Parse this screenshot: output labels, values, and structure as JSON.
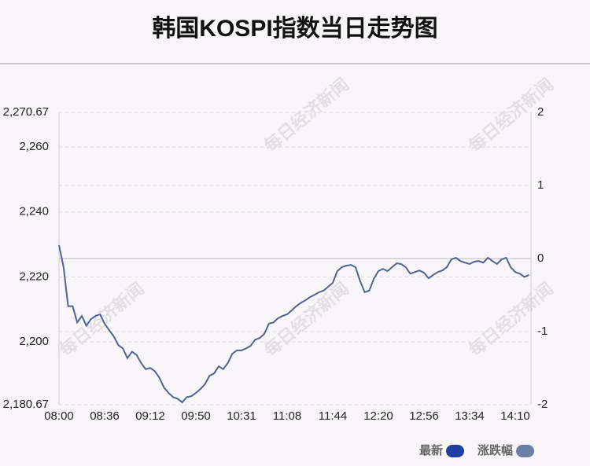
{
  "chart_data": {
    "type": "line",
    "title": "韩国KOSPI指数当日走势图",
    "watermark": "每日经济新闻",
    "categories": [
      "08:00",
      null,
      null,
      null,
      null,
      null,
      null,
      null,
      null,
      null,
      "08:36",
      null,
      null,
      null,
      null,
      null,
      null,
      null,
      null,
      null,
      "09:12",
      null,
      null,
      null,
      null,
      null,
      null,
      null,
      null,
      null,
      "09:50",
      null,
      null,
      null,
      null,
      null,
      null,
      null,
      null,
      null,
      "10:31",
      null,
      null,
      null,
      null,
      null,
      null,
      null,
      null,
      null,
      "11:08",
      null,
      null,
      null,
      null,
      null,
      null,
      null,
      null,
      null,
      "11:44",
      null,
      null,
      null,
      null,
      null,
      null,
      null,
      null,
      null,
      "12:20",
      null,
      null,
      null,
      null,
      null,
      null,
      null,
      null,
      null,
      "12:56",
      null,
      null,
      null,
      null,
      null,
      null,
      null,
      null,
      null,
      "13:34",
      null,
      null,
      null,
      null,
      null,
      null,
      null,
      null,
      null,
      "14:10",
      null,
      null,
      null
    ],
    "series": [
      {
        "name": "最新",
        "color": "#4f6494",
        "values": [
          2229.8,
          2223,
          2211,
          2211,
          2206,
          2208,
          2205,
          2207,
          2208,
          2208.5,
          2205.6,
          2203.6,
          2201.7,
          2199,
          2198,
          2195,
          2197,
          2196,
          2193.5,
          2191.6,
          2192,
          2191,
          2189,
          2186,
          2184.3,
          2183,
          2182.5,
          2181.4,
          2183,
          2183.3,
          2184.3,
          2185.5,
          2187,
          2189.6,
          2190.3,
          2192.5,
          2191.6,
          2193.5,
          2196.4,
          2197.4,
          2197.4,
          2198,
          2198.8,
          2200.7,
          2201.2,
          2202.5,
          2205.6,
          2206,
          2207.3,
          2208,
          2208.5,
          2209.7,
          2211,
          2212,
          2212.8,
          2213.8,
          2214.5,
          2215.3,
          2215.8,
          2217,
          2218.2,
          2221.8,
          2223,
          2223.5,
          2223.7,
          2223,
          2218.7,
          2215.3,
          2215.8,
          2219.4,
          2221.8,
          2222.5,
          2221.8,
          2223,
          2224.2,
          2224,
          2223,
          2221,
          2221.5,
          2222,
          2221.3,
          2219.6,
          2220.6,
          2221.5,
          2222,
          2223,
          2225.4,
          2225.9,
          2224.9,
          2224.4,
          2224,
          2224.7,
          2224.9,
          2224.4,
          2225.9,
          2224.9,
          2224,
          2225.4,
          2225.9,
          2223,
          2221.5,
          2221,
          2220,
          2220.6
        ]
      }
    ],
    "legend": [
      {
        "name": "最新",
        "color": "#1f3fa0"
      },
      {
        "name": "涨跌幅",
        "color": "#6a7fa8"
      }
    ],
    "ylim": [
      2180.67,
      2270.67
    ],
    "yticks": [
      {
        "value": 2180.67,
        "label": "2,180.67"
      },
      {
        "value": 2200,
        "label": "2,200"
      },
      {
        "value": 2220,
        "label": "2,220"
      },
      {
        "value": 2240,
        "label": "2,240"
      },
      {
        "value": 2260,
        "label": "2,260"
      },
      {
        "value": 2270.67,
        "label": "2,270.67"
      }
    ],
    "y2lim": [
      -2,
      2
    ],
    "y2ticks": [
      -2,
      -1,
      0,
      1,
      2
    ],
    "grid": true
  }
}
